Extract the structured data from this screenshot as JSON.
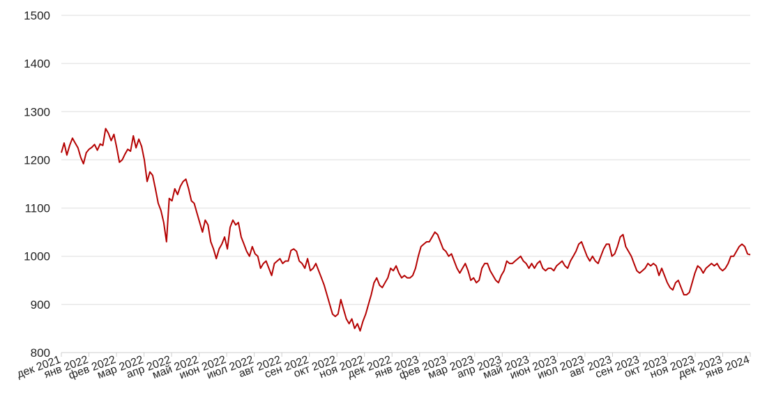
{
  "chart_data": {
    "type": "line",
    "title": "",
    "xlabel": "",
    "ylabel": "",
    "ylim": [
      800,
      1500
    ],
    "yticks": [
      800,
      900,
      1000,
      1100,
      1200,
      1300,
      1400,
      1500
    ],
    "grid": true,
    "line_color": "#b40000",
    "xticks": [
      "дек 2021",
      "янв 2022",
      "фев 2022",
      "мар 2022",
      "апр 2022",
      "май 2022",
      "июн 2022",
      "июл 2022",
      "авг 2022",
      "сен 2022",
      "окт 2022",
      "ноя 2022",
      "дек 2022",
      "янв 2023",
      "фев 2023",
      "мар 2023",
      "апр 2023",
      "май 2023",
      "июн 2023",
      "июл 2023",
      "авг 2023",
      "сен 2023",
      "окт 2023",
      "ноя 2023",
      "дек 2023",
      "янв 2024"
    ],
    "series": [
      {
        "values": [
          1215,
          1235,
          1210,
          1230,
          1245,
          1235,
          1225,
          1205,
          1192,
          1215,
          1222,
          1226,
          1232,
          1220,
          1233,
          1230,
          1265,
          1255,
          1240,
          1253,
          1225,
          1195,
          1200,
          1212,
          1222,
          1218,
          1250,
          1225,
          1243,
          1228,
          1200,
          1155,
          1175,
          1168,
          1140,
          1110,
          1095,
          1070,
          1030,
          1120,
          1115,
          1140,
          1128,
          1145,
          1155,
          1160,
          1140,
          1115,
          1110,
          1090,
          1070,
          1050,
          1075,
          1065,
          1030,
          1015,
          995,
          1015,
          1025,
          1040,
          1015,
          1060,
          1075,
          1065,
          1070,
          1040,
          1025,
          1010,
          1000,
          1020,
          1005,
          1000,
          975,
          985,
          990,
          975,
          960,
          985,
          990,
          995,
          985,
          990,
          990,
          1012,
          1015,
          1010,
          990,
          985,
          975,
          995,
          970,
          975,
          985,
          970,
          955,
          940,
          920,
          900,
          880,
          875,
          880,
          910,
          890,
          870,
          860,
          870,
          850,
          860,
          845,
          865,
          880,
          900,
          920,
          945,
          955,
          940,
          935,
          945,
          955,
          975,
          970,
          980,
          965,
          955,
          960,
          955,
          955,
          960,
          975,
          1000,
          1020,
          1025,
          1030,
          1030,
          1040,
          1050,
          1045,
          1030,
          1015,
          1010,
          1000,
          1005,
          990,
          975,
          965,
          975,
          985,
          970,
          950,
          955,
          945,
          950,
          975,
          985,
          985,
          970,
          960,
          950,
          945,
          960,
          970,
          990,
          985,
          985,
          990,
          995,
          1000,
          990,
          985,
          975,
          985,
          975,
          985,
          990,
          975,
          970,
          975,
          975,
          970,
          980,
          985,
          990,
          980,
          975,
          990,
          1000,
          1010,
          1025,
          1030,
          1015,
          1000,
          990,
          1000,
          990,
          985,
          1000,
          1015,
          1025,
          1025,
          1000,
          1005,
          1020,
          1040,
          1045,
          1020,
          1010,
          1000,
          985,
          970,
          965,
          970,
          975,
          985,
          980,
          985,
          980,
          960,
          975,
          960,
          945,
          935,
          930,
          945,
          950,
          935,
          920,
          920,
          925,
          945,
          965,
          980,
          975,
          965,
          975,
          980,
          985,
          980,
          985,
          975,
          970,
          975,
          985,
          1000,
          1000,
          1010,
          1020,
          1025,
          1020,
          1005,
          1003
        ]
      }
    ]
  }
}
